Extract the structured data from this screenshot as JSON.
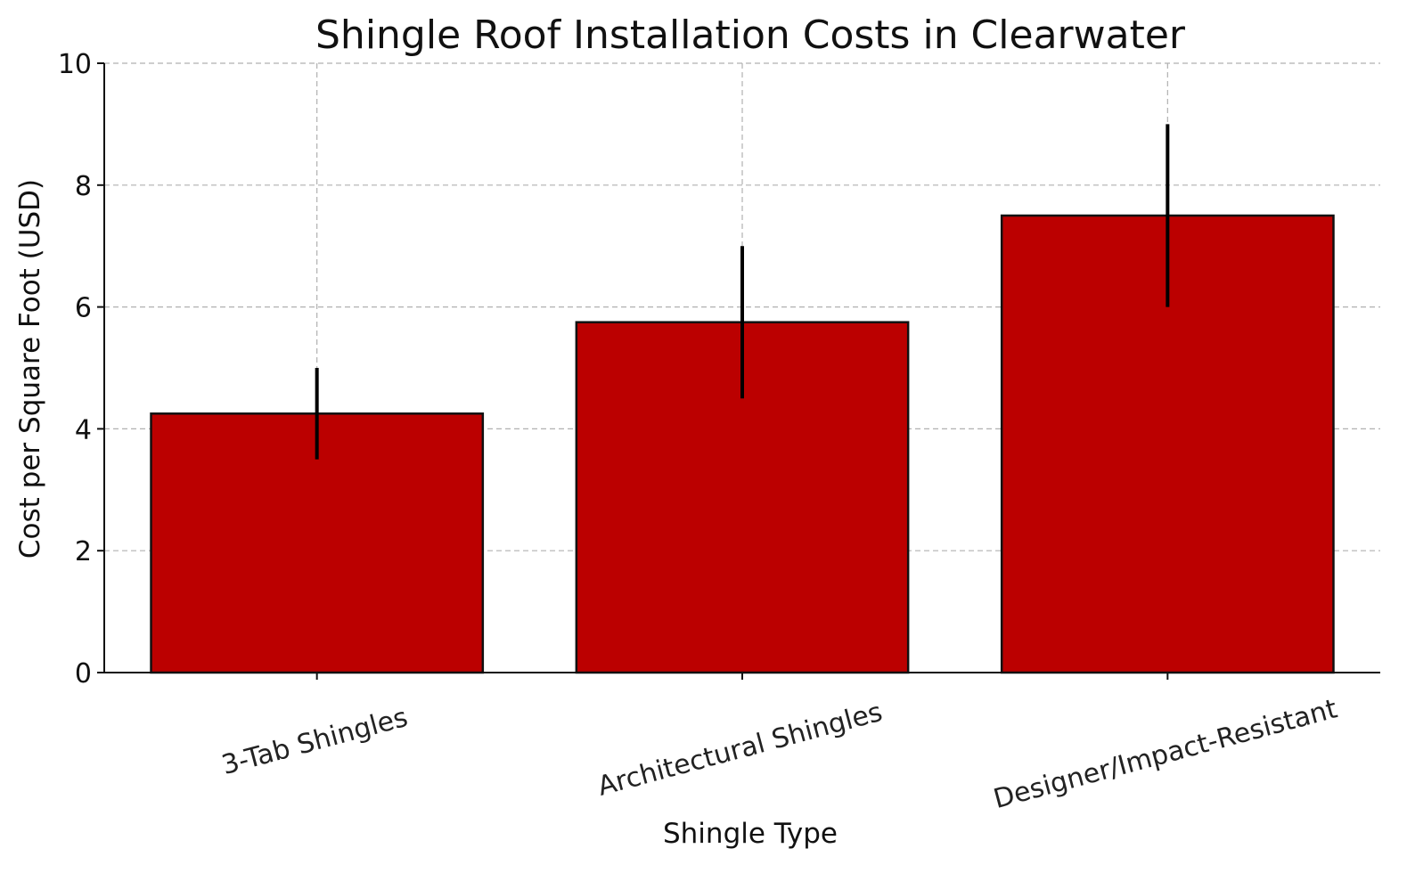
{
  "chart_data": {
    "type": "bar",
    "title": "Shingle Roof Installation Costs in Clearwater",
    "xlabel": "Shingle Type",
    "ylabel": "Cost per Square Foot (USD)",
    "categories": [
      "3-Tab Shingles",
      "Architectural Shingles",
      "Designer/Impact-Resistant"
    ],
    "values": [
      4.25,
      5.75,
      7.5
    ],
    "error_low": [
      3.5,
      4.5,
      6.0
    ],
    "error_high": [
      5.0,
      7.0,
      9.0
    ],
    "ylim": [
      0,
      10
    ],
    "yticks": [
      0,
      2,
      4,
      6,
      8,
      10
    ],
    "grid": true,
    "bar_color": "#bb0000",
    "bar_edge_color": "#111111",
    "error_color": "#000000"
  }
}
